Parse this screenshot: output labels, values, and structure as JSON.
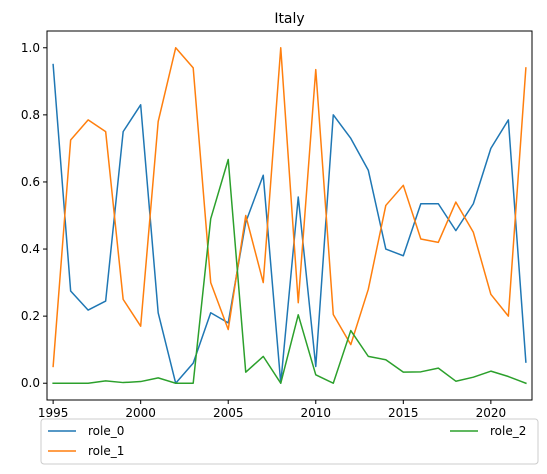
{
  "chart_data": {
    "type": "line",
    "title": "Italy",
    "xlabel": "",
    "ylabel": "",
    "xlim": [
      1994.65,
      2022.35
    ],
    "ylim": [
      -0.05,
      1.05
    ],
    "xticks": [
      1995,
      2000,
      2005,
      2010,
      2015,
      2020
    ],
    "yticks": [
      0.0,
      0.2,
      0.4,
      0.6,
      0.8,
      1.0
    ],
    "grid": false,
    "legend": {
      "placement": "bottom, outside the axes",
      "columns": 2
    },
    "x": [
      1995,
      1996,
      1997,
      1998,
      1999,
      2000,
      2001,
      2002,
      2003,
      2004,
      2005,
      2006,
      2007,
      2008,
      2009,
      2010,
      2011,
      2012,
      2013,
      2014,
      2015,
      2016,
      2017,
      2018,
      2019,
      2020,
      2021,
      2022
    ],
    "series": [
      {
        "name": "role_0",
        "color": "#1f77b4",
        "values": [
          0.95,
          0.275,
          0.218,
          0.245,
          0.75,
          0.83,
          0.21,
          0.0,
          0.06,
          0.21,
          0.18,
          0.48,
          0.62,
          0.0,
          0.555,
          0.05,
          0.8,
          0.73,
          0.635,
          0.4,
          0.38,
          0.535,
          0.535,
          0.455,
          0.535,
          0.7,
          0.785,
          0.063
        ]
      },
      {
        "name": "role_1",
        "color": "#ff7f0e",
        "values": [
          0.05,
          0.725,
          0.785,
          0.75,
          0.25,
          0.17,
          0.78,
          1.0,
          0.94,
          0.3,
          0.16,
          0.5,
          0.3,
          1.0,
          0.24,
          0.935,
          0.205,
          0.115,
          0.28,
          0.53,
          0.59,
          0.43,
          0.42,
          0.54,
          0.45,
          0.265,
          0.2,
          0.94
        ]
      },
      {
        "name": "role_2",
        "color": "#2ca02c",
        "values": [
          0.0,
          0.0,
          0.0,
          0.007,
          0.002,
          0.005,
          0.016,
          0.0,
          0.0,
          0.49,
          0.667,
          0.033,
          0.08,
          0.0,
          0.204,
          0.025,
          0.0,
          0.157,
          0.08,
          0.07,
          0.033,
          0.034,
          0.045,
          0.006,
          0.018,
          0.036,
          0.02,
          0.0
        ]
      }
    ]
  }
}
